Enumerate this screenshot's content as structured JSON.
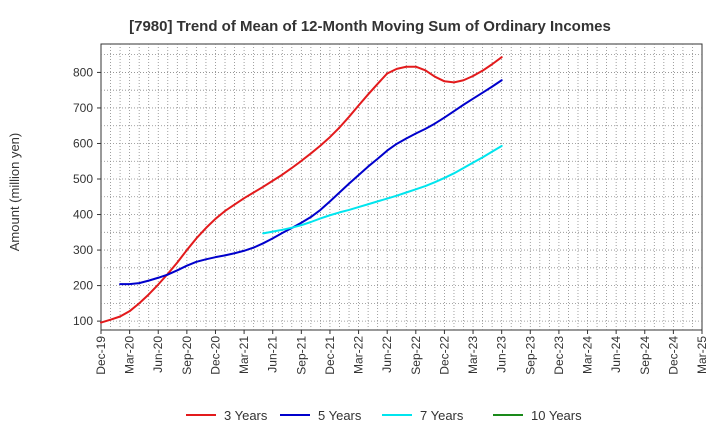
{
  "chart_data": {
    "type": "line",
    "title": "[7980]  Trend of Mean of 12-Month Moving Sum of Ordinary Incomes",
    "xlabel": "",
    "ylabel": "Amount (million yen)",
    "ylim": [
      75,
      880
    ],
    "yticks": [
      100,
      200,
      300,
      400,
      500,
      600,
      700,
      800
    ],
    "x_ticks": [
      "Dec-19",
      "Mar-20",
      "Jun-20",
      "Sep-20",
      "Dec-20",
      "Mar-21",
      "Jun-21",
      "Sep-21",
      "Dec-21",
      "Mar-22",
      "Jun-22",
      "Sep-22",
      "Dec-22",
      "Mar-23",
      "Jun-23",
      "Sep-23",
      "Dec-23",
      "Mar-24",
      "Jun-24",
      "Sep-24",
      "Dec-24",
      "Mar-25"
    ],
    "grid": true,
    "legend_position": "bottom",
    "series": [
      {
        "name": "3 Years",
        "color": "#e31a1c",
        "start_index": 0,
        "values": [
          96,
          104,
          113,
          128,
          150,
          175,
          203,
          233,
          265,
          300,
          333,
          362,
          388,
          410,
          428,
          446,
          462,
          478,
          495,
          512,
          531,
          551,
          572,
          594,
          618,
          645,
          675,
          707,
          738,
          768,
          797,
          810,
          816,
          816,
          806,
          788,
          775,
          772,
          778,
          790,
          805,
          823,
          843
        ]
      },
      {
        "name": "5 Years",
        "color": "#0000cc",
        "start_index": 2,
        "values": [
          204,
          204,
          207,
          214,
          222,
          231,
          243,
          256,
          267,
          274,
          280,
          285,
          291,
          298,
          307,
          319,
          333,
          348,
          362,
          377,
          393,
          413,
          437,
          462,
          487,
          511,
          535,
          557,
          580,
          599,
          614,
          628,
          641,
          656,
          673,
          691,
          709,
          726,
          743,
          760,
          778
        ]
      },
      {
        "name": "7 Years",
        "color": "#00e5ee",
        "start_index": 17,
        "values": [
          347,
          352,
          357,
          363,
          370,
          379,
          389,
          398,
          406,
          413,
          421,
          429,
          437,
          445,
          453,
          462,
          471,
          480,
          491,
          503,
          516,
          531,
          546,
          561,
          577,
          593
        ]
      },
      {
        "name": "10 Years",
        "color": "#1a8a1a",
        "start_index": 0,
        "values": []
      }
    ]
  }
}
